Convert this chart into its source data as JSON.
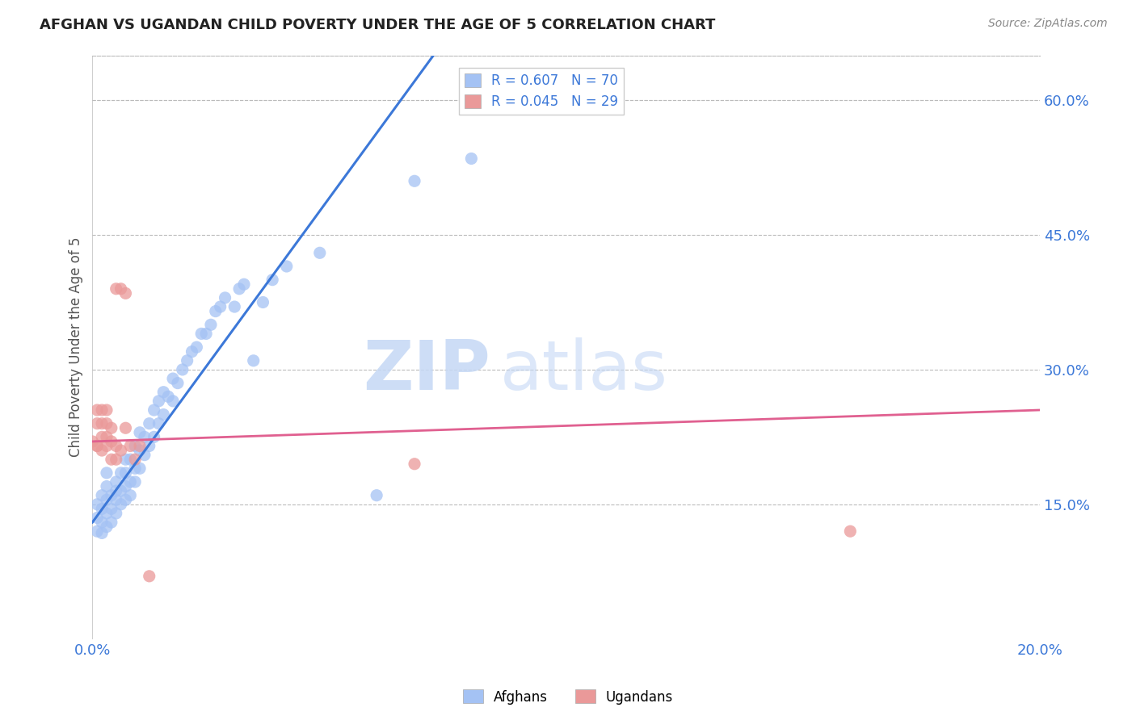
{
  "title": "AFGHAN VS UGANDAN CHILD POVERTY UNDER THE AGE OF 5 CORRELATION CHART",
  "source": "Source: ZipAtlas.com",
  "ylabel": "Child Poverty Under the Age of 5",
  "xlim": [
    0.0,
    0.2
  ],
  "ylim": [
    0.0,
    0.65
  ],
  "x_ticks": [
    0.0,
    0.05,
    0.1,
    0.15,
    0.2
  ],
  "x_tick_labels": [
    "0.0%",
    "",
    "",
    "",
    "20.0%"
  ],
  "y_ticks_right": [
    0.15,
    0.3,
    0.45,
    0.6
  ],
  "y_tick_labels_right": [
    "15.0%",
    "30.0%",
    "45.0%",
    "60.0%"
  ],
  "afghan_color": "#a4c2f4",
  "ugandan_color": "#ea9999",
  "afghan_line_color": "#3c78d8",
  "ugandan_line_color": "#e06090",
  "watermark_ZIP": "ZIP",
  "watermark_atlas": "atlas",
  "background_color": "#ffffff",
  "grid_color": "#bbbbbb",
  "afghan_scatter_x": [
    0.001,
    0.001,
    0.001,
    0.002,
    0.002,
    0.002,
    0.002,
    0.003,
    0.003,
    0.003,
    0.003,
    0.003,
    0.004,
    0.004,
    0.004,
    0.005,
    0.005,
    0.005,
    0.005,
    0.006,
    0.006,
    0.006,
    0.007,
    0.007,
    0.007,
    0.007,
    0.008,
    0.008,
    0.008,
    0.009,
    0.009,
    0.009,
    0.01,
    0.01,
    0.01,
    0.011,
    0.011,
    0.012,
    0.012,
    0.013,
    0.013,
    0.014,
    0.014,
    0.015,
    0.015,
    0.016,
    0.017,
    0.017,
    0.018,
    0.019,
    0.02,
    0.021,
    0.022,
    0.023,
    0.024,
    0.025,
    0.026,
    0.027,
    0.028,
    0.03,
    0.031,
    0.032,
    0.034,
    0.036,
    0.038,
    0.041,
    0.048,
    0.06,
    0.068,
    0.08
  ],
  "afghan_scatter_y": [
    0.12,
    0.135,
    0.15,
    0.118,
    0.13,
    0.145,
    0.16,
    0.125,
    0.14,
    0.155,
    0.17,
    0.185,
    0.13,
    0.145,
    0.16,
    0.14,
    0.155,
    0.165,
    0.175,
    0.15,
    0.165,
    0.185,
    0.155,
    0.17,
    0.185,
    0.2,
    0.16,
    0.175,
    0.2,
    0.175,
    0.19,
    0.215,
    0.19,
    0.21,
    0.23,
    0.205,
    0.225,
    0.215,
    0.24,
    0.225,
    0.255,
    0.24,
    0.265,
    0.25,
    0.275,
    0.27,
    0.265,
    0.29,
    0.285,
    0.3,
    0.31,
    0.32,
    0.325,
    0.34,
    0.34,
    0.35,
    0.365,
    0.37,
    0.38,
    0.37,
    0.39,
    0.395,
    0.31,
    0.375,
    0.4,
    0.415,
    0.43,
    0.16,
    0.51,
    0.535
  ],
  "ugandan_scatter_x": [
    0.0,
    0.001,
    0.001,
    0.001,
    0.001,
    0.002,
    0.002,
    0.002,
    0.002,
    0.003,
    0.003,
    0.003,
    0.003,
    0.004,
    0.004,
    0.004,
    0.005,
    0.005,
    0.005,
    0.006,
    0.006,
    0.007,
    0.007,
    0.008,
    0.009,
    0.01,
    0.012,
    0.068,
    0.16
  ],
  "ugandan_scatter_y": [
    0.22,
    0.215,
    0.215,
    0.24,
    0.255,
    0.21,
    0.225,
    0.24,
    0.255,
    0.215,
    0.225,
    0.24,
    0.255,
    0.2,
    0.22,
    0.235,
    0.2,
    0.215,
    0.39,
    0.21,
    0.39,
    0.235,
    0.385,
    0.215,
    0.2,
    0.215,
    0.07,
    0.195,
    0.12
  ],
  "afghan_line_x0": 0.0,
  "afghan_line_y0": 0.13,
  "afghan_line_x1": 0.072,
  "afghan_line_y1": 0.65,
  "ugandan_line_x0": 0.0,
  "ugandan_line_y0": 0.22,
  "ugandan_line_x1": 0.2,
  "ugandan_line_y1": 0.255
}
